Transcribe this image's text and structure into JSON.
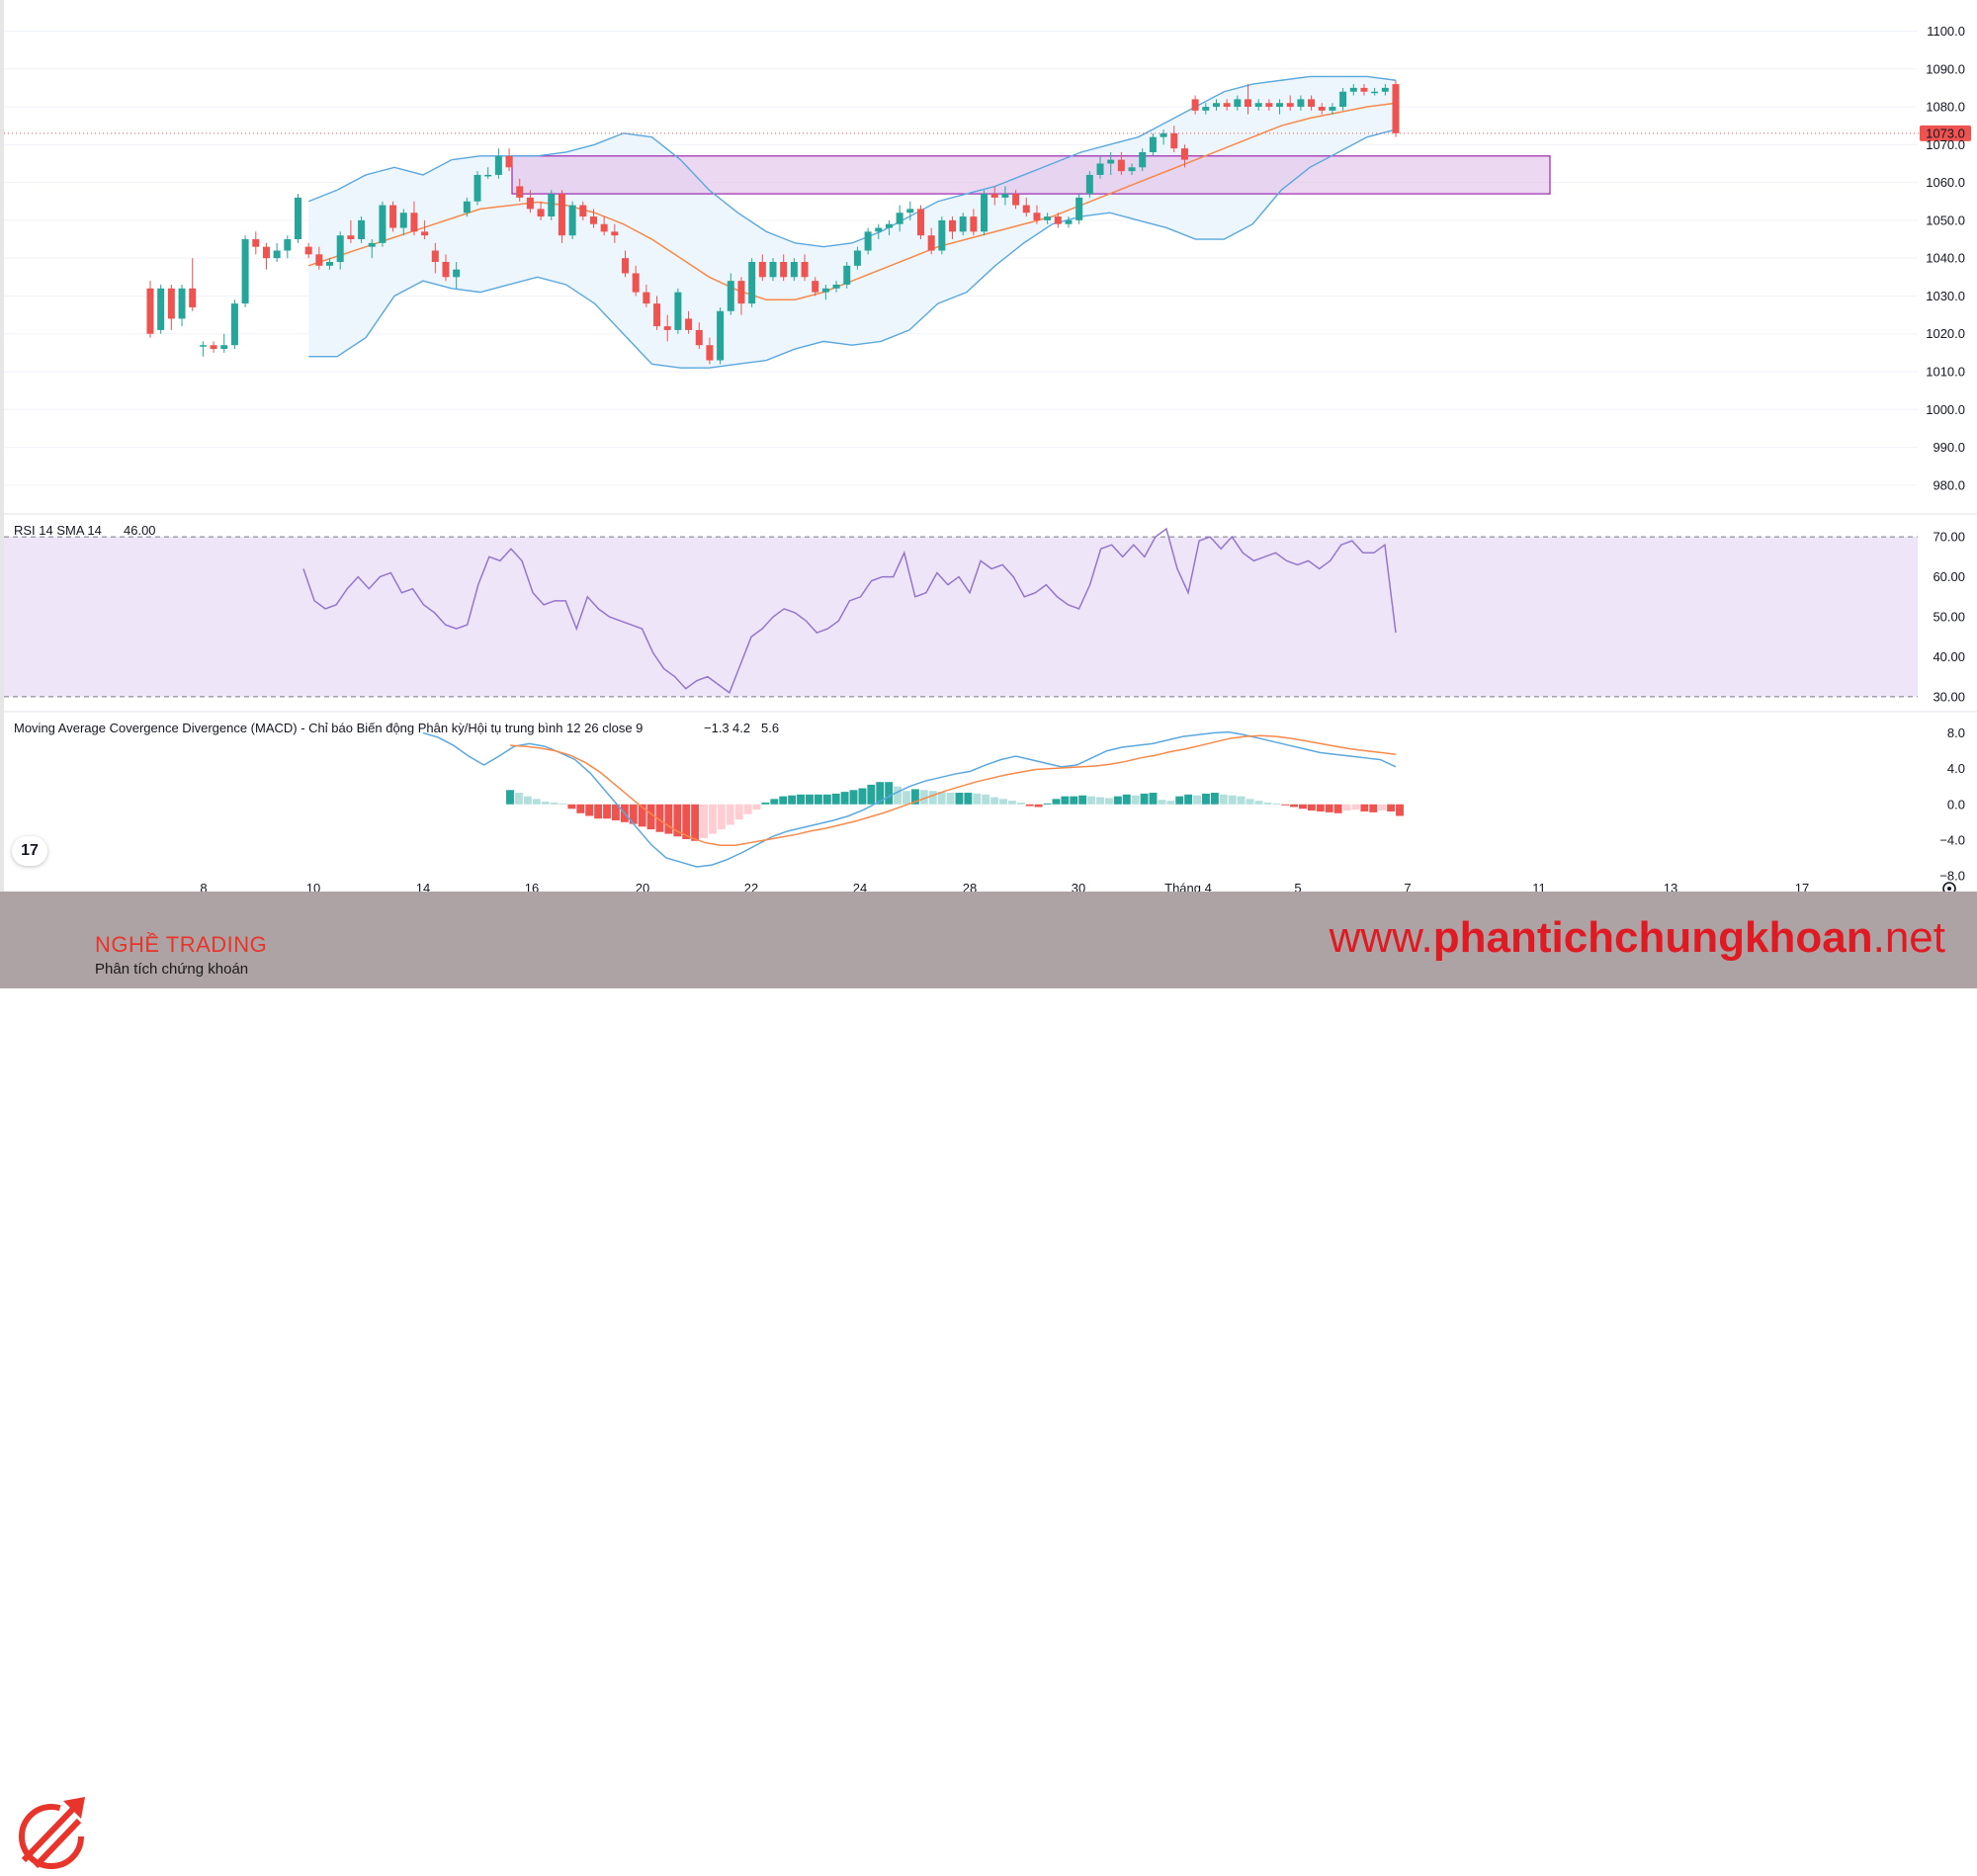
{
  "chart_data": [
    {
      "type": "candlestick",
      "x_axis_labels": [
        "8",
        "10",
        "14",
        "16",
        "20",
        "22",
        "24",
        "28",
        "30",
        "Tháng 4",
        "5",
        "7",
        "11",
        "13",
        "17"
      ],
      "y_ticks": [
        "1100.0",
        "1090.0",
        "1080.0",
        "1070.0",
        "1060.0",
        "1050.0",
        "1040.0",
        "1030.0",
        "1020.0",
        "1010.0",
        "1000.0",
        "990.0",
        "980.0"
      ],
      "ylim": [
        975,
        1103
      ],
      "last_price_label": "1073.0",
      "last_price": 1073.0,
      "colors": {
        "up": "#26a69a",
        "down": "#ef5350",
        "ma": "#f7894a",
        "bands": "#5aa8e0",
        "band_fill": "#eaf4fb",
        "zone_fill": "#e1bee7",
        "zone_border": "#9c27b0"
      },
      "resistance_zone": {
        "low": 1057,
        "high": 1067
      },
      "candles": [
        [
          1032.0,
          1034.0,
          1019.0,
          1020.0
        ],
        [
          1021.0,
          1033.0,
          1020.0,
          1032.0
        ],
        [
          1032.0,
          1033.0,
          1021.0,
          1024.0
        ],
        [
          1024.0,
          1033.0,
          1022.0,
          1032.0
        ],
        [
          1032.0,
          1040.0,
          1026.0,
          1027.0
        ],
        [
          1017.0,
          1018.0,
          1014.0,
          1017.0
        ],
        [
          1017.0,
          1018.0,
          1015.0,
          1016.0
        ],
        [
          1016.0,
          1020.0,
          1015.0,
          1017.0
        ],
        [
          1017.0,
          1029.0,
          1016.0,
          1028.0
        ],
        [
          1028.0,
          1046.0,
          1027.0,
          1045.0
        ],
        [
          1045.0,
          1047.0,
          1041.0,
          1043.0
        ],
        [
          1043.0,
          1044.0,
          1037.0,
          1040.0
        ],
        [
          1040.0,
          1044.0,
          1039.0,
          1042.0
        ],
        [
          1042.0,
          1046.0,
          1040.0,
          1045.0
        ],
        [
          1045.0,
          1057.0,
          1044.0,
          1056.0
        ],
        [
          1043.0,
          1044.0,
          1040.0,
          1041.0
        ],
        [
          1041.0,
          1043.0,
          1037.0,
          1038.0
        ],
        [
          1038.0,
          1040.0,
          1037.0,
          1039.0
        ],
        [
          1039.0,
          1047.0,
          1037.0,
          1046.0
        ],
        [
          1046.0,
          1050.0,
          1044.0,
          1045.0
        ],
        [
          1045.0,
          1051.0,
          1044.0,
          1050.0
        ],
        [
          1043.0,
          1045.0,
          1040.0,
          1044.0
        ],
        [
          1044.0,
          1055.0,
          1043.0,
          1054.0
        ],
        [
          1054.0,
          1055.0,
          1047.0,
          1048.0
        ],
        [
          1048.0,
          1053.0,
          1046.0,
          1052.0
        ],
        [
          1052.0,
          1055.0,
          1046.0,
          1047.0
        ],
        [
          1047.0,
          1050.0,
          1045.0,
          1046.0
        ],
        [
          1042.0,
          1044.0,
          1036.0,
          1039.0
        ],
        [
          1039.0,
          1041.0,
          1034.0,
          1035.0
        ],
        [
          1035.0,
          1039.0,
          1032.0,
          1037.0
        ],
        [
          1052.0,
          1056.0,
          1051.0,
          1055.0
        ],
        [
          1055.0,
          1063.0,
          1054.0,
          1062.0
        ],
        [
          1062.0,
          1064.0,
          1061.0,
          1062.0
        ],
        [
          1062.0,
          1069.0,
          1061.0,
          1067.0
        ],
        [
          1067.0,
          1069.0,
          1063.0,
          1064.0
        ],
        [
          1059.0,
          1061.0,
          1055.0,
          1056.0
        ],
        [
          1056.0,
          1058.0,
          1052.0,
          1053.0
        ],
        [
          1053.0,
          1055.0,
          1050.0,
          1051.0
        ],
        [
          1051.0,
          1058.0,
          1050.0,
          1057.0
        ],
        [
          1057.0,
          1058.0,
          1044.0,
          1046.0
        ],
        [
          1046.0,
          1055.0,
          1045.0,
          1054.0
        ],
        [
          1054.0,
          1055.0,
          1050.0,
          1051.0
        ],
        [
          1051.0,
          1053.0,
          1048.0,
          1049.0
        ],
        [
          1049.0,
          1051.0,
          1046.0,
          1047.0
        ],
        [
          1047.0,
          1049.0,
          1044.0,
          1046.0
        ],
        [
          1040.0,
          1042.0,
          1035.0,
          1036.0
        ],
        [
          1036.0,
          1038.0,
          1030.0,
          1031.0
        ],
        [
          1031.0,
          1033.0,
          1027.0,
          1028.0
        ],
        [
          1028.0,
          1030.0,
          1021.0,
          1022.0
        ],
        [
          1022.0,
          1025.0,
          1018.0,
          1021.0
        ],
        [
          1021.0,
          1032.0,
          1020.0,
          1031.0
        ],
        [
          1024.0,
          1026.0,
          1020.0,
          1021.0
        ],
        [
          1021.0,
          1023.0,
          1016.0,
          1017.0
        ],
        [
          1017.0,
          1019.0,
          1012.0,
          1013.0
        ],
        [
          1013.0,
          1027.0,
          1012.0,
          1026.0
        ],
        [
          1026.0,
          1036.0,
          1025.0,
          1034.0
        ],
        [
          1034.0,
          1035.0,
          1025.0,
          1028.0
        ],
        [
          1028.0,
          1040.0,
          1027.0,
          1039.0
        ],
        [
          1039.0,
          1041.0,
          1034.0,
          1035.0
        ],
        [
          1035.0,
          1040.0,
          1034.0,
          1039.0
        ],
        [
          1039.0,
          1041.0,
          1034.0,
          1035.0
        ],
        [
          1035.0,
          1040.0,
          1034.0,
          1039.0
        ],
        [
          1039.0,
          1041.0,
          1034.0,
          1035.0
        ],
        [
          1034.0,
          1035.0,
          1030.0,
          1031.0
        ],
        [
          1031.0,
          1033.0,
          1029.0,
          1032.0
        ],
        [
          1032.0,
          1034.0,
          1031.0,
          1033.0
        ],
        [
          1033.0,
          1039.0,
          1032.0,
          1038.0
        ],
        [
          1038.0,
          1043.0,
          1037.0,
          1042.0
        ],
        [
          1042.0,
          1048.0,
          1041.0,
          1047.0
        ],
        [
          1047.0,
          1049.0,
          1045.0,
          1048.0
        ],
        [
          1048.0,
          1050.0,
          1046.0,
          1049.0
        ],
        [
          1049.0,
          1054.0,
          1047.0,
          1052.0
        ],
        [
          1052.0,
          1055.0,
          1050.0,
          1053.0
        ],
        [
          1053.0,
          1054.0,
          1045.0,
          1046.0
        ],
        [
          1046.0,
          1048.0,
          1041.0,
          1042.0
        ],
        [
          1042.0,
          1051.0,
          1041.0,
          1050.0
        ],
        [
          1050.0,
          1051.0,
          1045.0,
          1047.0
        ],
        [
          1047.0,
          1052.0,
          1046.0,
          1051.0
        ],
        [
          1051.0,
          1053.0,
          1046.0,
          1047.0
        ],
        [
          1047.0,
          1058.0,
          1046.0,
          1057.0
        ],
        [
          1057.0,
          1059.0,
          1054.0,
          1056.0
        ],
        [
          1056.0,
          1059.0,
          1054.0,
          1057.0
        ],
        [
          1057.0,
          1058.0,
          1053.0,
          1054.0
        ],
        [
          1054.0,
          1056.0,
          1051.0,
          1052.0
        ],
        [
          1052.0,
          1054.0,
          1049.0,
          1050.0
        ],
        [
          1050.0,
          1052.0,
          1049.0,
          1051.0
        ],
        [
          1051.0,
          1052.0,
          1048.0,
          1049.0
        ],
        [
          1049.0,
          1051.0,
          1048.0,
          1050.0
        ],
        [
          1050.0,
          1057.0,
          1049.0,
          1056.0
        ],
        [
          1057.0,
          1063.0,
          1056.0,
          1062.0
        ],
        [
          1062.0,
          1067.0,
          1061.0,
          1065.0
        ],
        [
          1065.0,
          1068.0,
          1062.0,
          1066.0
        ],
        [
          1066.0,
          1068.0,
          1062.0,
          1063.0
        ],
        [
          1063.0,
          1065.0,
          1062.0,
          1064.0
        ],
        [
          1064.0,
          1069.0,
          1063.0,
          1068.0
        ],
        [
          1068.0,
          1073.0,
          1067.0,
          1072.0
        ],
        [
          1072.0,
          1074.0,
          1070.0,
          1073.0
        ],
        [
          1073.0,
          1075.0,
          1068.0,
          1069.0
        ],
        [
          1069.0,
          1070.0,
          1064.0,
          1066.0
        ],
        [
          1082.0,
          1083.0,
          1078.0,
          1079.0
        ],
        [
          1079.0,
          1081.0,
          1078.0,
          1080.0
        ],
        [
          1080.0,
          1082.0,
          1079.0,
          1081.0
        ],
        [
          1081.0,
          1082.0,
          1079.0,
          1080.0
        ],
        [
          1080.0,
          1083.0,
          1079.0,
          1082.0
        ],
        [
          1082.0,
          1086.0,
          1078.0,
          1080.0
        ],
        [
          1080.0,
          1082.0,
          1079.0,
          1081.0
        ],
        [
          1081.0,
          1082.0,
          1079.0,
          1080.0
        ],
        [
          1080.0,
          1082.0,
          1078.0,
          1081.0
        ],
        [
          1081.0,
          1083.0,
          1079.0,
          1080.0
        ],
        [
          1080.0,
          1083.0,
          1079.0,
          1082.0
        ],
        [
          1082.0,
          1083.0,
          1079.0,
          1080.0
        ],
        [
          1080.0,
          1081.0,
          1078.0,
          1079.0
        ],
        [
          1079.0,
          1081.0,
          1078.0,
          1080.0
        ],
        [
          1080.0,
          1085.0,
          1079.0,
          1084.0
        ],
        [
          1084.0,
          1086.0,
          1083.0,
          1085.0
        ],
        [
          1085.0,
          1086.0,
          1083.0,
          1084.0
        ],
        [
          1084.0,
          1085.0,
          1083.0,
          1084.0
        ],
        [
          1084.0,
          1086.0,
          1083.0,
          1085.0
        ],
        [
          1086.0,
          1087.0,
          1072.0,
          1073.0
        ]
      ],
      "ma_values": [
        1038.0,
        1040.5,
        1043.0,
        1045.5,
        1048.0,
        1050.5,
        1053.0,
        1053.9,
        1054.8,
        1054.0,
        1052.0,
        1049.0,
        1045.0,
        1040.0,
        1035.0,
        1031.5,
        1029.0,
        1029.0,
        1031.0,
        1034.0,
        1037.0,
        1040.0,
        1043.0,
        1045.0,
        1047.0,
        1049.0,
        1051.0,
        1054.0,
        1057.0,
        1060.0,
        1063.0,
        1066.0,
        1069.0,
        1072.0,
        1075.0,
        1077.0,
        1078.5,
        1080.0,
        1081.0
      ],
      "upper_band": [
        1055.0,
        1058.0,
        1062.0,
        1064.0,
        1062.0,
        1066.0,
        1067.0,
        1067.0,
        1067.0,
        1068.0,
        1070.0,
        1073.0,
        1072.0,
        1066.0,
        1058.0,
        1052.0,
        1047.0,
        1044.0,
        1043.0,
        1044.0,
        1047.0,
        1051.0,
        1055.0,
        1057.0,
        1059.0,
        1062.0,
        1065.0,
        1068.0,
        1070.0,
        1072.0,
        1076.0,
        1080.0,
        1084.0,
        1086.0,
        1087.0,
        1088.0,
        1088.0,
        1088.0,
        1087.0
      ],
      "lower_band": [
        1014.0,
        1014.0,
        1019.0,
        1030.0,
        1034.0,
        1032.0,
        1031.0,
        1033.0,
        1035.0,
        1033.0,
        1028.0,
        1020.0,
        1012.0,
        1011.0,
        1011.0,
        1012.0,
        1013.0,
        1016.0,
        1018.0,
        1017.0,
        1018.0,
        1021.0,
        1028.0,
        1031.0,
        1038.0,
        1044.0,
        1049.0,
        1051.0,
        1052.0,
        1050.0,
        1048.0,
        1045.0,
        1045.0,
        1049.0,
        1058.0,
        1064.0,
        1068.0,
        1072.0,
        1074.0
      ]
    },
    {
      "type": "line",
      "legend_name": "RSI 14 SMA 14",
      "legend_value": "46.00",
      "y_ticks": [
        "70.00",
        "60.00",
        "50.00",
        "40.00",
        "30.00"
      ],
      "ylim": [
        27,
        73
      ],
      "levels": [
        70,
        30
      ],
      "colors": {
        "line": "#9575cd",
        "fill": "#eee6f8",
        "level": "#787b86"
      },
      "values": [
        62.0,
        54.0,
        52.0,
        53.0,
        57.0,
        60.0,
        57.0,
        60.0,
        61.0,
        56.0,
        57.0,
        53.0,
        51.0,
        48.0,
        47.0,
        48.0,
        58.0,
        65.0,
        64.0,
        67.0,
        64.0,
        56.0,
        53.0,
        54.0,
        54.0,
        47.0,
        55.0,
        52.0,
        50.0,
        49.0,
        48.0,
        47.0,
        41.0,
        37.0,
        35.0,
        32.0,
        34.0,
        35.0,
        33.0,
        31.0,
        38.0,
        45.0,
        47.0,
        50.0,
        52.0,
        51.0,
        49.0,
        46.0,
        47.0,
        49.0,
        54.0,
        55.0,
        59.0,
        60.0,
        60.0,
        66.0,
        55.0,
        56.0,
        61.0,
        58.0,
        60.0,
        56.0,
        64.0,
        62.0,
        63.0,
        60.0,
        55.0,
        56.0,
        58.0,
        55.0,
        53.0,
        52.0,
        58.0,
        67.0,
        68.0,
        65.0,
        68.0,
        65.0,
        70.0,
        72.0,
        62.0,
        56.0,
        69.0,
        70.0,
        67.0,
        70.0,
        66.0,
        64.0,
        65.0,
        66.0,
        64.0,
        63.0,
        64.0,
        62.0,
        64.0,
        68.0,
        69.0,
        66.0,
        66.0,
        68.0,
        46.0
      ]
    },
    {
      "type": "bar_line",
      "legend_name": "Moving Average Covergence Divergence (MACD) - Chỉ báo Biến động Phân kỳ/Hội tụ trung bình 12 26 close 9",
      "legend_values": [
        "−1.3",
        "4.2",
        "5.6"
      ],
      "y_ticks": [
        "8.0",
        "4.0",
        "0.0",
        "−4.0",
        "−8.0"
      ],
      "ylim": [
        -9,
        9.5
      ],
      "colors": {
        "macd": "#5aa8e0",
        "signal": "#f7894a",
        "hist_up_strong": "#26a69a",
        "hist_up_weak": "#b2dfdb",
        "hist_down_strong": "#ef5350",
        "hist_down_weak": "#ffcdd2"
      },
      "macd": [
        8.0,
        7.5,
        6.6,
        5.4,
        4.4,
        5.4,
        6.5,
        6.8,
        6.5,
        5.8,
        5.0,
        3.5,
        1.5,
        -0.5,
        -2.5,
        -4.5,
        -6.0,
        -6.5,
        -7.0,
        -6.8,
        -6.2,
        -5.4,
        -4.5,
        -3.6,
        -3.0,
        -2.6,
        -2.2,
        -1.8,
        -1.3,
        -0.6,
        0.3,
        1.2,
        2.0,
        2.6,
        3.0,
        3.4,
        3.7,
        4.4,
        5.0,
        5.4,
        5.0,
        4.6,
        4.2,
        4.4,
        5.2,
        6.0,
        6.4,
        6.6,
        6.8,
        7.2,
        7.6,
        7.8,
        8.0,
        8.1,
        7.8,
        7.4,
        7.0,
        6.6,
        6.2,
        5.8,
        5.6,
        5.4,
        5.2,
        5.0,
        4.2
      ],
      "signal": [
        6.6,
        6.5,
        6.3,
        6.0,
        5.5,
        4.7,
        3.6,
        2.2,
        0.8,
        -0.6,
        -1.8,
        -2.9,
        -3.7,
        -4.3,
        -4.6,
        -4.6,
        -4.3,
        -4.0,
        -3.7,
        -3.4,
        -3.0,
        -2.7,
        -2.3,
        -1.9,
        -1.4,
        -0.9,
        -0.3,
        0.3,
        0.9,
        1.5,
        2.0,
        2.5,
        2.9,
        3.3,
        3.6,
        3.9,
        4.0,
        4.1,
        4.2,
        4.3,
        4.5,
        4.8,
        5.2,
        5.5,
        5.9,
        6.2,
        6.6,
        7.0,
        7.4,
        7.6,
        7.7,
        7.6,
        7.4,
        7.1,
        6.8,
        6.5,
        6.2,
        6.0,
        5.8,
        5.6
      ],
      "histogram": [
        1.6,
        1.3,
        0.9,
        0.6,
        0.3,
        0.2,
        0.1,
        -0.5,
        -1.0,
        -1.3,
        -1.6,
        -1.6,
        -1.8,
        -2.0,
        -2.2,
        -2.5,
        -2.8,
        -3.1,
        -3.3,
        -3.6,
        -3.9,
        -4.1,
        -3.8,
        -3.3,
        -2.8,
        -2.3,
        -1.7,
        -1.1,
        -0.6,
        0.2,
        0.6,
        0.9,
        1.0,
        1.1,
        1.1,
        1.1,
        1.1,
        1.2,
        1.4,
        1.6,
        1.8,
        2.2,
        2.5,
        2.5,
        2.0,
        1.5,
        1.7,
        1.6,
        1.5,
        1.4,
        1.3,
        1.3,
        1.3,
        1.2,
        1.1,
        0.8,
        0.6,
        0.4,
        0.2,
        -0.2,
        -0.3,
        0.1,
        0.6,
        0.9,
        0.9,
        1.0,
        0.9,
        0.8,
        0.7,
        0.9,
        1.1,
        1.0,
        1.2,
        1.3,
        0.5,
        0.4,
        0.9,
        1.1,
        1.0,
        1.2,
        1.3,
        1.1,
        1.0,
        0.9,
        0.6,
        0.4,
        0.2,
        0.1,
        -0.1,
        -0.3,
        -0.5,
        -0.7,
        -0.8,
        -0.9,
        -1.0,
        -0.7,
        -0.6,
        -0.8,
        -0.9,
        -0.7,
        -0.8,
        -1.3
      ]
    }
  ],
  "footer": {
    "logo_name": "NGHỀ TRADING",
    "logo_tagline": "Phân tích chứng khoán",
    "website_prefix": "www.",
    "website_main": "phantichchungkhoan",
    "website_suffix": ".net"
  },
  "tradingview_badge": "17"
}
